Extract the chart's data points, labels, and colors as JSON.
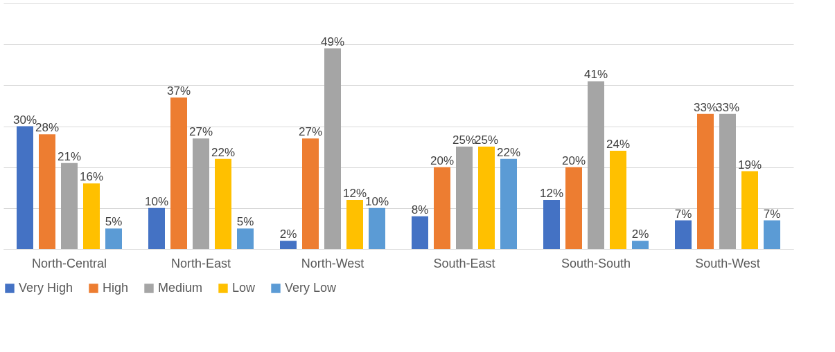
{
  "chart_data": {
    "type": "bar",
    "categories": [
      "North-Central",
      "North-East",
      "North-West",
      "South-East",
      "South-South",
      "South-West"
    ],
    "series": [
      {
        "name": "Very High",
        "color": "#4472c4",
        "values": [
          30,
          10,
          2,
          8,
          12,
          7
        ],
        "value_labels": [
          "30%",
          "10%",
          "2%",
          "8%",
          "12%",
          "7%"
        ]
      },
      {
        "name": "High",
        "color": "#ed7d31",
        "values": [
          28,
          37,
          27,
          20,
          20,
          33
        ],
        "value_labels": [
          "28%",
          "37%",
          "27%",
          "20%",
          "20%",
          "33%"
        ]
      },
      {
        "name": "Medium",
        "color": "#a5a5a5",
        "values": [
          21,
          27,
          49,
          25,
          41,
          33
        ],
        "value_labels": [
          "21%",
          "27%",
          "49%",
          "25%",
          "41%",
          "33%"
        ]
      },
      {
        "name": "Low",
        "color": "#ffc000",
        "values": [
          16,
          22,
          12,
          25,
          24,
          19
        ],
        "value_labels": [
          "16%",
          "22%",
          "12%",
          "25%",
          "24%",
          "19%"
        ]
      },
      {
        "name": "Very Low",
        "color": "#5b9bd5",
        "values": [
          5,
          5,
          10,
          22,
          2,
          7
        ],
        "value_labels": [
          "5%",
          "5%",
          "10%",
          "22%",
          "2%",
          "7%"
        ]
      }
    ],
    "ylim": [
      0,
      60
    ],
    "yticks": [
      0,
      10,
      20,
      30,
      40,
      50,
      60
    ],
    "grid": "y",
    "tick_labels": "x",
    "legend": "bottom"
  }
}
